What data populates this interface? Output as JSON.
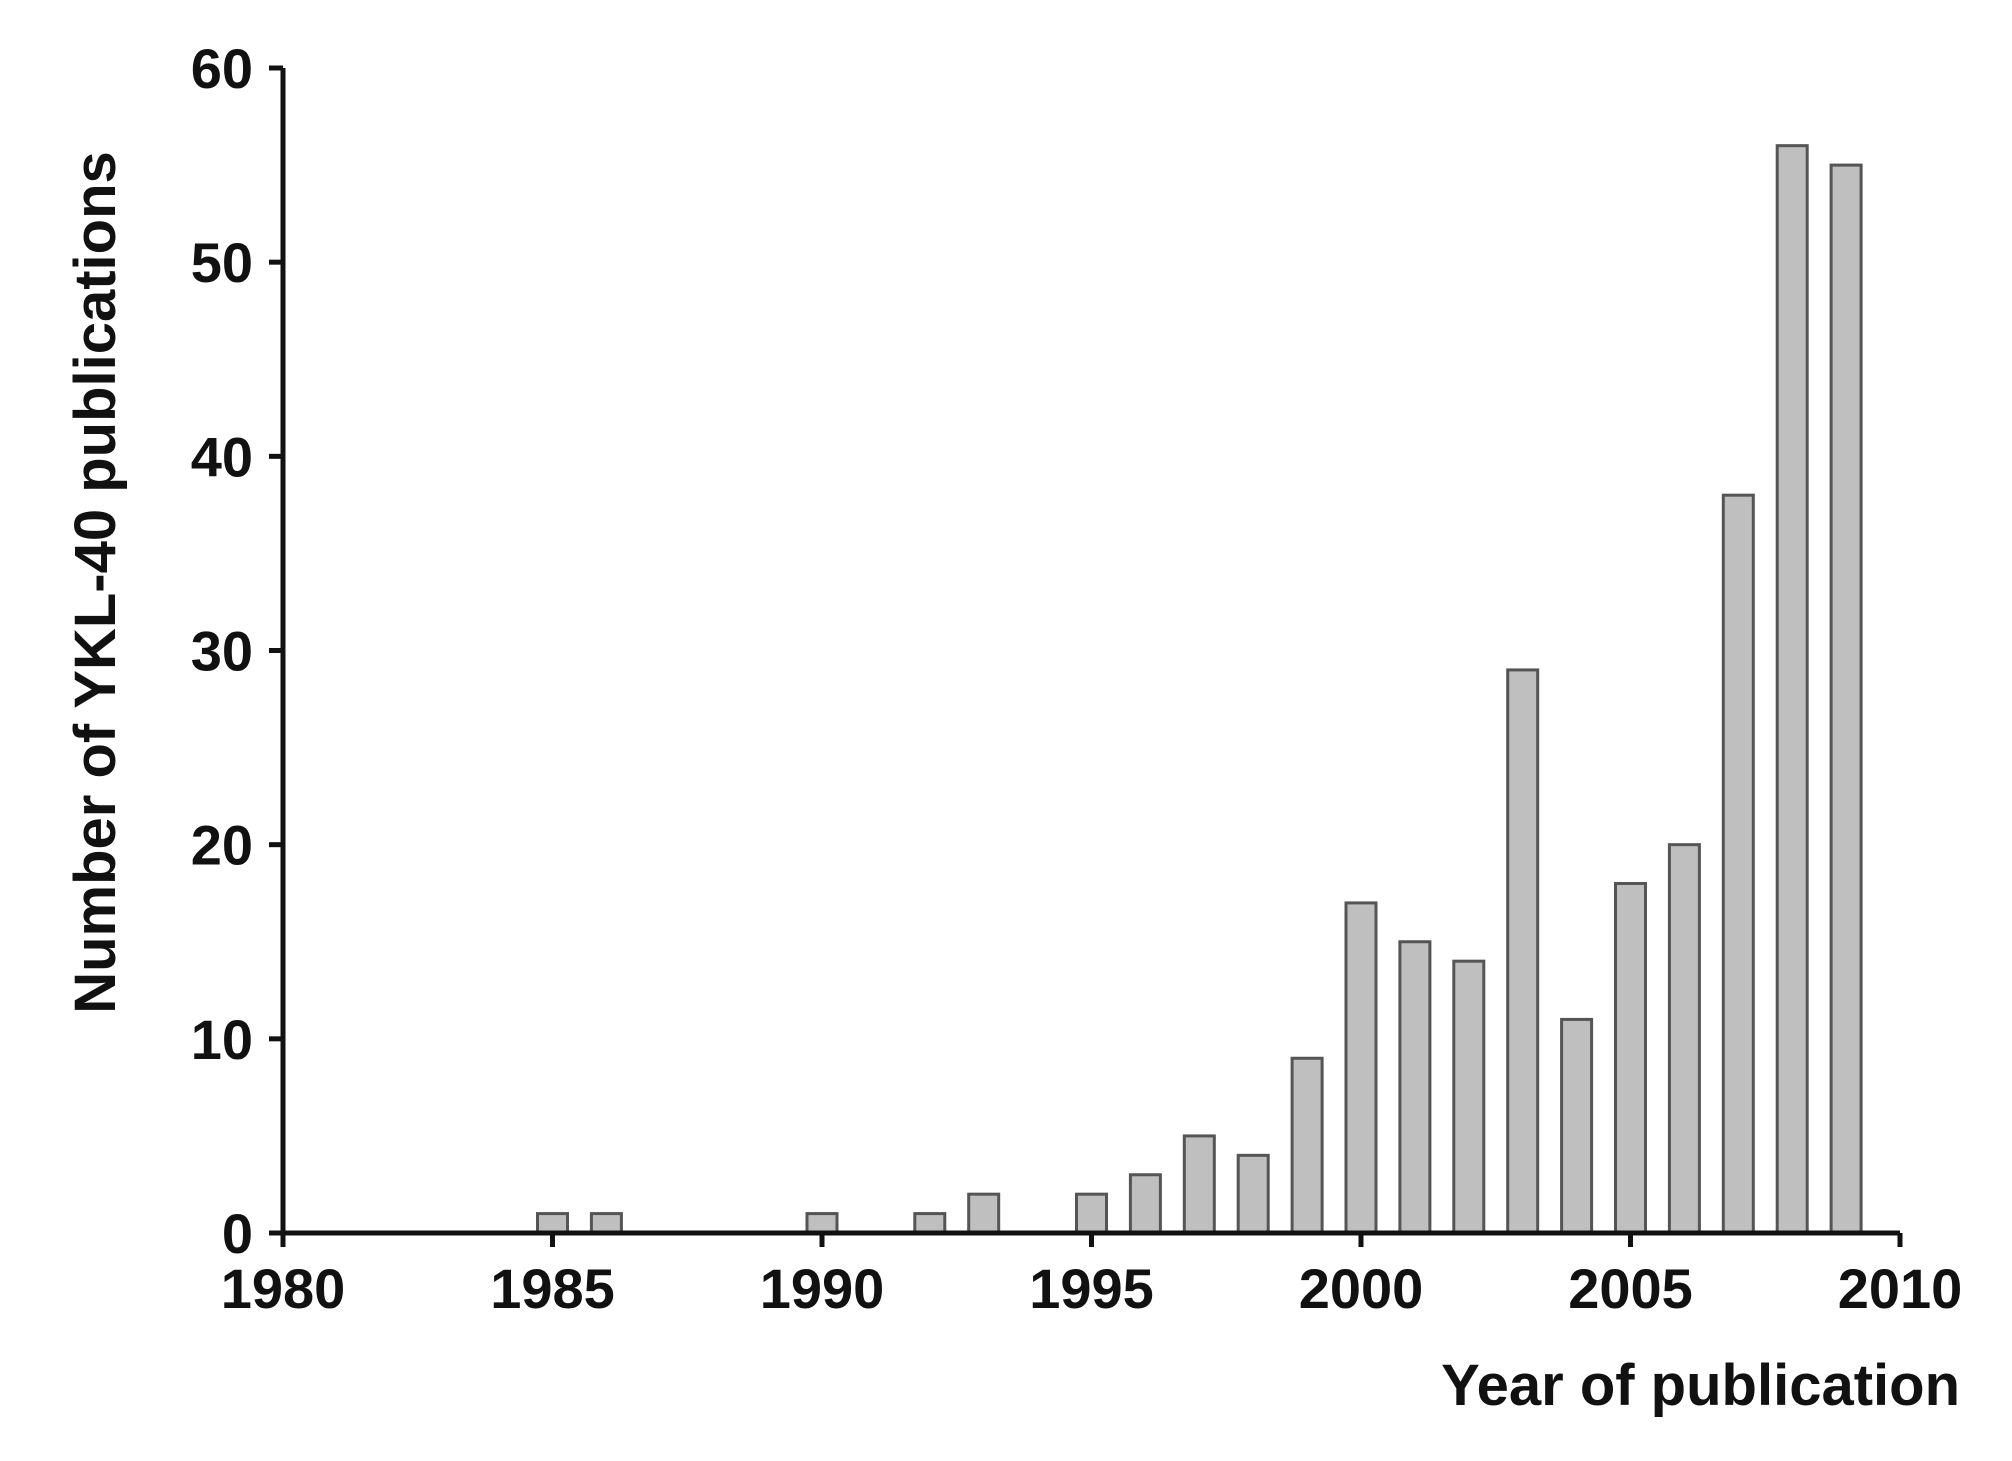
{
  "chart_data": {
    "type": "bar",
    "title": "",
    "xlabel": "Year of publication",
    "ylabel": "Number of YKL-40 publications",
    "xlim": [
      1980,
      2010
    ],
    "ylim": [
      0,
      60
    ],
    "x_ticks": [
      "1980",
      "1985",
      "1990",
      "1995",
      "2000",
      "2005",
      "2010"
    ],
    "y_ticks": [
      "0",
      "10",
      "20",
      "30",
      "40",
      "50",
      "60"
    ],
    "grid": false,
    "legend": "none",
    "colors": {
      "bar_fill": "#bfbfbf",
      "bar_stroke": "#555555",
      "axis": "#111111"
    },
    "x": [
      1985,
      1986,
      1990,
      1992,
      1993,
      1995,
      1996,
      1997,
      1998,
      1999,
      2000,
      2001,
      2002,
      2003,
      2004,
      2005,
      2006,
      2007,
      2008,
      2009
    ],
    "values": [
      1,
      1,
      1,
      1,
      2,
      2,
      3,
      5,
      4,
      9,
      17,
      15,
      14,
      29,
      11,
      18,
      20,
      38,
      56,
      55
    ]
  }
}
